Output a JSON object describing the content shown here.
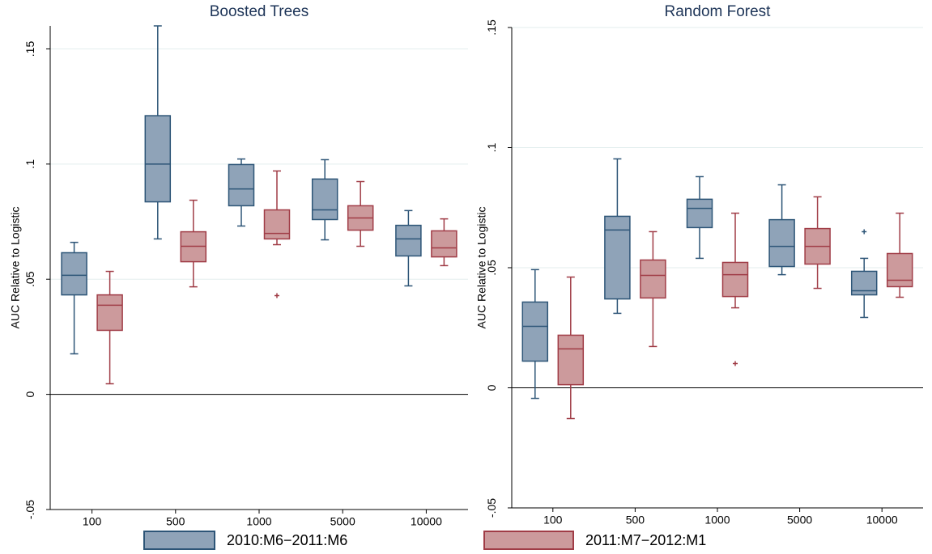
{
  "chart_data": [
    {
      "type": "box",
      "title": "Boosted Trees",
      "y_label": "AUC Relative to Logistic",
      "categories": [
        "100",
        "500",
        "1000",
        "5000",
        "10000"
      ],
      "ylim": [
        -0.05,
        0.16
      ],
      "yticks": [
        {
          "value": -0.05,
          "label": "-.05"
        },
        0,
        {
          "value": 0.05,
          "label": ".05"
        },
        {
          "value": 0.1,
          "label": ".1"
        },
        {
          "value": 0.15,
          "label": ".15"
        }
      ],
      "grid": true,
      "series": [
        {
          "name": "2010:M6−2011:M6",
          "color": "#8fa3b8",
          "edge": "#2d5577",
          "values": [
            {
              "min": 0.0176,
              "q1": 0.0432,
              "median": 0.0517,
              "q3": 0.0615,
              "max": 0.066,
              "outliers": []
            },
            {
              "min": 0.0675,
              "q1": 0.0836,
              "median": 0.1,
              "q3": 0.121,
              "max": 0.16,
              "outliers": []
            },
            {
              "min": 0.0731,
              "q1": 0.0819,
              "median": 0.0892,
              "q3": 0.0998,
              "max": 0.1022,
              "outliers": []
            },
            {
              "min": 0.0671,
              "q1": 0.0759,
              "median": 0.0801,
              "q3": 0.0935,
              "max": 0.1019,
              "outliers": []
            },
            {
              "min": 0.0471,
              "q1": 0.0601,
              "median": 0.0675,
              "q3": 0.0734,
              "max": 0.0798,
              "outliers": []
            }
          ]
        },
        {
          "name": "2011:M7−2012:M1",
          "color": "#cc9a9c",
          "edge": "#a03c46",
          "values": [
            {
              "min": 0.0046,
              "q1": 0.0278,
              "median": 0.0387,
              "q3": 0.0432,
              "max": 0.0534,
              "outliers": []
            },
            {
              "min": 0.0467,
              "q1": 0.0576,
              "median": 0.0643,
              "q3": 0.0706,
              "max": 0.0843,
              "outliers": []
            },
            {
              "min": 0.065,
              "q1": 0.0675,
              "median": 0.0699,
              "q3": 0.0801,
              "max": 0.097,
              "outliers": [
                0.0429
              ]
            },
            {
              "min": 0.0643,
              "q1": 0.0713,
              "median": 0.0766,
              "q3": 0.0819,
              "max": 0.0924,
              "outliers": []
            },
            {
              "min": 0.0559,
              "q1": 0.0597,
              "median": 0.0636,
              "q3": 0.071,
              "max": 0.0762,
              "outliers": []
            }
          ]
        }
      ]
    },
    {
      "type": "box",
      "title": "Random Forest",
      "y_label": "AUC Relative to Logistic",
      "categories": [
        "100",
        "500",
        "1000",
        "5000",
        "10000"
      ],
      "ylim": [
        -0.05,
        0.15
      ],
      "yticks": [
        {
          "value": -0.05,
          "label": "-.05"
        },
        0,
        {
          "value": 0.05,
          "label": ".05"
        },
        {
          "value": 0.1,
          "label": ".1"
        },
        {
          "value": 0.15,
          "label": ".15"
        }
      ],
      "grid": true,
      "series": [
        {
          "name": "2010:M6−2011:M6",
          "color": "#8fa3b8",
          "edge": "#2d5577",
          "values": [
            {
              "min": -0.0044,
              "q1": 0.0111,
              "median": 0.0256,
              "q3": 0.0357,
              "max": 0.0492,
              "outliers": []
            },
            {
              "min": 0.031,
              "q1": 0.037,
              "median": 0.0657,
              "q3": 0.0714,
              "max": 0.0953,
              "outliers": []
            },
            {
              "min": 0.0539,
              "q1": 0.0667,
              "median": 0.0747,
              "q3": 0.0785,
              "max": 0.0879,
              "outliers": []
            },
            {
              "min": 0.0471,
              "q1": 0.0505,
              "median": 0.0589,
              "q3": 0.07,
              "max": 0.0845,
              "outliers": []
            },
            {
              "min": 0.0293,
              "q1": 0.0387,
              "median": 0.0404,
              "q3": 0.0485,
              "max": 0.0539,
              "outliers": [
                0.065
              ]
            }
          ]
        },
        {
          "name": "2011:M7−2012:M1",
          "color": "#cc9a9c",
          "edge": "#a03c46",
          "values": [
            {
              "min": -0.0128,
              "q1": 0.0013,
              "median": 0.0162,
              "q3": 0.0219,
              "max": 0.0461,
              "outliers": []
            },
            {
              "min": 0.0172,
              "q1": 0.0374,
              "median": 0.0468,
              "q3": 0.0532,
              "max": 0.065,
              "outliers": []
            },
            {
              "min": 0.0333,
              "q1": 0.038,
              "median": 0.0471,
              "q3": 0.0522,
              "max": 0.0727,
              "outliers": [
                0.0101
              ]
            },
            {
              "min": 0.0414,
              "q1": 0.0515,
              "median": 0.0589,
              "q3": 0.0663,
              "max": 0.0795,
              "outliers": []
            },
            {
              "min": 0.0377,
              "q1": 0.0421,
              "median": 0.0448,
              "q3": 0.0559,
              "max": 0.0727,
              "outliers": []
            }
          ]
        }
      ]
    }
  ]
}
